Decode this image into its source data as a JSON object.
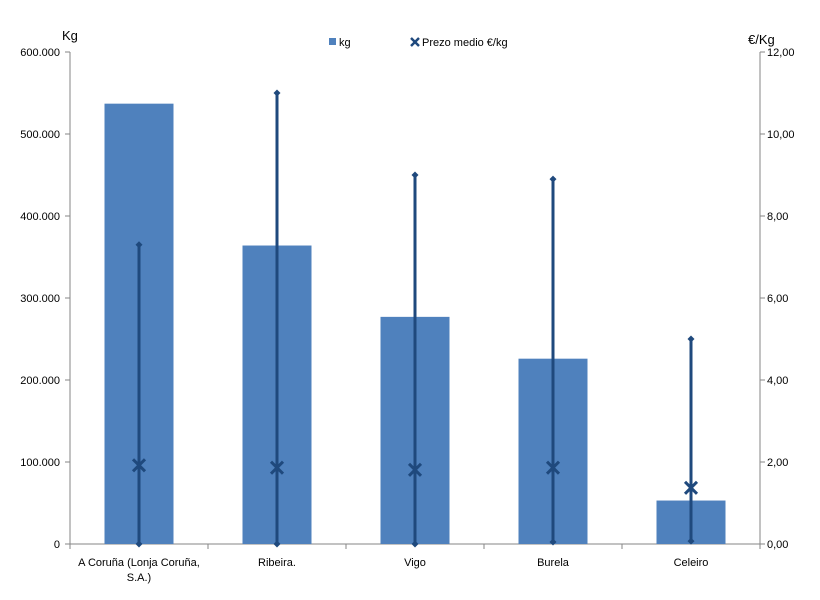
{
  "chart_data": {
    "type": "bar",
    "categories": [
      "A Coruña (Lonja Coruña, S.A.)",
      "Ribeira.",
      "Vigo",
      "Burela",
      "Celeiro"
    ],
    "category_lines": [
      [
        "A Coruña (Lonja Coruña,",
        "S.A.)"
      ],
      [
        "Ribeira."
      ],
      [
        "Vigo"
      ],
      [
        "Burela"
      ],
      [
        "Celeiro"
      ]
    ],
    "series": [
      {
        "name": "kg",
        "axis": "left",
        "kind": "bar",
        "color": "#4F81BD",
        "values": [
          537000,
          364000,
          277000,
          226000,
          53000
        ]
      }
    ],
    "price": {
      "name": "Prezo medio €/kg",
      "axis": "right",
      "color": "#1F497D",
      "avg": [
        1.92,
        1.86,
        1.81,
        1.86,
        1.37
      ],
      "min": [
        0.0,
        0.0,
        0.0,
        0.05,
        0.07
      ],
      "max": [
        7.3,
        11.0,
        9.0,
        8.9,
        5.0
      ]
    },
    "y_left": {
      "label": "Kg",
      "lim": [
        0,
        600000
      ],
      "ticks": [
        0,
        100000,
        200000,
        300000,
        400000,
        500000,
        600000
      ],
      "tick_labels": [
        "0",
        "100.000",
        "200.000",
        "300.000",
        "400.000",
        "500.000",
        "600.000"
      ]
    },
    "y_right": {
      "label": "€/Kg",
      "lim": [
        0,
        12
      ],
      "ticks": [
        0,
        2,
        4,
        6,
        8,
        10,
        12
      ],
      "tick_labels": [
        "0,00",
        "2,00",
        "4,00",
        "6,00",
        "8,00",
        "10,00",
        "12,00"
      ]
    },
    "legend": {
      "position": "top-center",
      "items": [
        "kg",
        "Prezo medio €/kg"
      ]
    },
    "grid": false
  }
}
